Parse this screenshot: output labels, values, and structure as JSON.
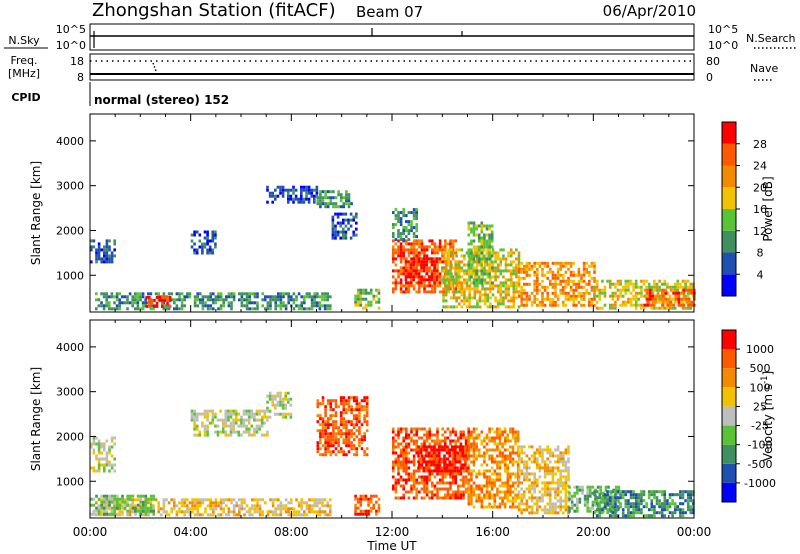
{
  "header": {
    "station_title": "Zhongshan Station (fitACF)",
    "beam_label": "Beam 07",
    "date": "06/Apr/2010"
  },
  "status_panels": {
    "nsky_label": "N.Sky",
    "nsky_ticks": [
      "10^5",
      "10^0"
    ],
    "nsearch_label": "N.Search",
    "nsearch_ticks": [
      "10^5",
      "10^0"
    ],
    "freq_label_line1": "Freq.",
    "freq_label_line2": "[MHz]",
    "freq_ticks": [
      "18",
      "8"
    ],
    "nave_label": "Nave",
    "nave_ticks": [
      "80",
      "0"
    ],
    "cpid_label": "CPID",
    "cpid_text": "normal (stereo) 152"
  },
  "chart_data": [
    {
      "type": "heatmap",
      "title": "",
      "xlabel": "Time UT",
      "ylabel": "Slant Range [km]",
      "x_tick_labels": [
        "00:00",
        "04:00",
        "08:00",
        "12:00",
        "16:00",
        "20:00",
        "00:00"
      ],
      "y_tick_labels": [
        "1000",
        "2000",
        "3000",
        "4000"
      ],
      "xlim_hours": [
        0,
        24
      ],
      "ylim_km": [
        180,
        4600
      ],
      "colorbar": {
        "label": "Power [dB]",
        "tick_labels": [
          "4",
          "8",
          "12",
          "16",
          "20",
          "24",
          "28"
        ],
        "colors": [
          "#0000ff",
          "#1f4fb0",
          "#3f8f5f",
          "#59c236",
          "#f2c200",
          "#f28b00",
          "#ff5a00",
          "#ff0000"
        ]
      },
      "regions": [
        {
          "t0": 0.2,
          "t1": 9.6,
          "r0": 260,
          "r1": 620,
          "level": 2
        },
        {
          "t0": 2.2,
          "t1": 3.2,
          "r0": 300,
          "r1": 540,
          "level": 7
        },
        {
          "t0": 0.0,
          "t1": 1.0,
          "r0": 1300,
          "r1": 1800,
          "level": 1
        },
        {
          "t0": 4.0,
          "t1": 5.0,
          "r0": 1500,
          "r1": 2000,
          "level": 1
        },
        {
          "t0": 7.0,
          "t1": 9.0,
          "r0": 2600,
          "r1": 3000,
          "level": 1
        },
        {
          "t0": 9.0,
          "t1": 10.4,
          "r0": 2500,
          "r1": 2900,
          "level": 2
        },
        {
          "t0": 9.6,
          "t1": 10.6,
          "r0": 1800,
          "r1": 2400,
          "level": 1
        },
        {
          "t0": 10.5,
          "t1": 11.5,
          "r0": 260,
          "r1": 700,
          "level": 3
        },
        {
          "t0": 12.0,
          "t1": 14.5,
          "r0": 600,
          "r1": 1800,
          "level": 6
        },
        {
          "t0": 12.5,
          "t1": 13.8,
          "r0": 800,
          "r1": 1400,
          "level": 7
        },
        {
          "t0": 12.0,
          "t1": 13.0,
          "r0": 1800,
          "r1": 2500,
          "level": 2
        },
        {
          "t0": 14.0,
          "t1": 17.0,
          "r0": 300,
          "r1": 1600,
          "level": 4
        },
        {
          "t0": 15.0,
          "t1": 16.0,
          "r0": 800,
          "r1": 2200,
          "level": 3
        },
        {
          "t0": 17.0,
          "t1": 20.0,
          "r0": 300,
          "r1": 1300,
          "level": 5
        },
        {
          "t0": 20.0,
          "t1": 24.0,
          "r0": 260,
          "r1": 900,
          "level": 4
        },
        {
          "t0": 22.0,
          "t1": 24.0,
          "r0": 350,
          "r1": 700,
          "level": 6
        }
      ]
    },
    {
      "type": "heatmap",
      "title": "",
      "xlabel": "Time UT",
      "ylabel": "Slant Range [km]",
      "x_tick_labels": [
        "00:00",
        "04:00",
        "08:00",
        "12:00",
        "16:00",
        "20:00",
        "00:00"
      ],
      "y_tick_labels": [
        "1000",
        "2000",
        "3000",
        "4000"
      ],
      "xlim_hours": [
        0,
        24
      ],
      "ylim_km": [
        180,
        4600
      ],
      "colorbar": {
        "label": "Velocity [m s^-1]",
        "tick_labels": [
          "1000",
          "500",
          "100",
          "25",
          "-25",
          "-100",
          "-500",
          "-1000"
        ],
        "colors": [
          "#0000ff",
          "#1f4fb0",
          "#3f8f5f",
          "#59c236",
          "#bdbdbd",
          "#f2c200",
          "#f28b00",
          "#ff5a00",
          "#ff0000"
        ]
      },
      "regions": [
        {
          "t0": 0.2,
          "t1": 9.6,
          "r0": 260,
          "r1": 620,
          "level": 5
        },
        {
          "t0": 0.0,
          "t1": 2.5,
          "r0": 260,
          "r1": 700,
          "level": 3
        },
        {
          "t0": 0.0,
          "t1": 1.0,
          "r0": 1200,
          "r1": 2000,
          "level": 4
        },
        {
          "t0": 4.0,
          "t1": 7.0,
          "r0": 2000,
          "r1": 2600,
          "level": 4
        },
        {
          "t0": 7.0,
          "t1": 8.0,
          "r0": 2400,
          "r1": 3000,
          "level": 4
        },
        {
          "t0": 9.0,
          "t1": 11.0,
          "r0": 1600,
          "r1": 2900,
          "level": 7
        },
        {
          "t0": 10.5,
          "t1": 11.5,
          "r0": 260,
          "r1": 700,
          "level": 7
        },
        {
          "t0": 12.0,
          "t1": 15.0,
          "r0": 600,
          "r1": 2200,
          "level": 7
        },
        {
          "t0": 13.0,
          "t1": 15.0,
          "r0": 1200,
          "r1": 1800,
          "level": 8
        },
        {
          "t0": 15.0,
          "t1": 17.0,
          "r0": 400,
          "r1": 2200,
          "level": 6
        },
        {
          "t0": 17.0,
          "t1": 19.0,
          "r0": 300,
          "r1": 1800,
          "level": 5
        },
        {
          "t0": 19.0,
          "t1": 21.0,
          "r0": 300,
          "r1": 900,
          "level": 3
        },
        {
          "t0": 20.0,
          "t1": 24.0,
          "r0": 260,
          "r1": 800,
          "level": 2
        }
      ]
    }
  ]
}
